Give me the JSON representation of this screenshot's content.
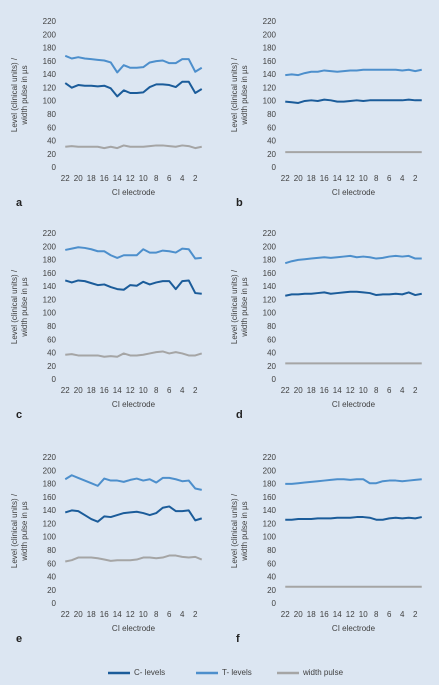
{
  "chart_data": [
    {
      "type": "line",
      "label": "a",
      "ylabel": [
        "Level (clinical units) /",
        "width pulse in µs"
      ],
      "xlabel": "CI electrode",
      "categories": [
        "22",
        null,
        "20",
        null,
        "18",
        null,
        "16",
        null,
        "14",
        null,
        "12",
        null,
        "10",
        null,
        "8",
        null,
        "6",
        null,
        "4",
        null,
        "2",
        null
      ],
      "ylim": [
        0,
        220
      ],
      "yticks": [
        0,
        20,
        40,
        60,
        80,
        100,
        120,
        140,
        160,
        180,
        200,
        220
      ],
      "series": [
        {
          "name": "C- levels",
          "color": "#1b5c9a",
          "values": [
            128,
            121,
            125,
            124,
            124,
            123,
            124,
            120,
            108,
            117,
            113,
            113,
            114,
            122,
            126,
            126,
            125,
            122,
            130,
            130,
            113,
            119
          ]
        },
        {
          "name": "T- levels",
          "color": "#4d8fcc",
          "values": [
            169,
            165,
            167,
            165,
            164,
            163,
            162,
            159,
            144,
            155,
            151,
            151,
            152,
            159,
            161,
            162,
            158,
            158,
            164,
            164,
            145,
            151
          ]
        },
        {
          "name": "width pulse",
          "color": "#a5a5a5",
          "values": [
            32,
            33,
            32,
            32,
            32,
            32,
            30,
            32,
            30,
            34,
            32,
            32,
            32,
            33,
            34,
            34,
            33,
            32,
            34,
            33,
            30,
            32
          ]
        }
      ]
    },
    {
      "type": "line",
      "label": "b",
      "ylabel": [
        "Level (clinical units) /",
        "width pulse in µs"
      ],
      "xlabel": "CI electrode",
      "categories": [
        "22",
        null,
        "20",
        null,
        "18",
        null,
        "16",
        null,
        "14",
        null,
        "12",
        null,
        "10",
        null,
        "8",
        null,
        "6",
        null,
        "4",
        null,
        "2",
        null
      ],
      "ylim": [
        0,
        220
      ],
      "yticks": [
        0,
        20,
        40,
        60,
        80,
        100,
        120,
        140,
        160,
        180,
        200,
        220
      ],
      "series": [
        {
          "name": "C- levels",
          "color": "#1b5c9a",
          "values": [
            100,
            99,
            98,
            101,
            102,
            101,
            103,
            102,
            100,
            100,
            101,
            102,
            101,
            102,
            102,
            102,
            102,
            102,
            102,
            103,
            102,
            102
          ]
        },
        {
          "name": "T- levels",
          "color": "#4d8fcc",
          "values": [
            140,
            141,
            140,
            143,
            145,
            145,
            147,
            146,
            145,
            146,
            147,
            147,
            148,
            148,
            148,
            148,
            148,
            148,
            147,
            148,
            146,
            148
          ]
        },
        {
          "name": "width pulse",
          "color": "#a5a5a5",
          "values": [
            24,
            24,
            24,
            24,
            24,
            24,
            24,
            24,
            24,
            24,
            24,
            24,
            24,
            24,
            24,
            24,
            24,
            24,
            24,
            24,
            24,
            24
          ]
        }
      ]
    },
    {
      "type": "line",
      "label": "c",
      "ylabel": [
        "Level (clinical units) /",
        "width pulse in µs"
      ],
      "xlabel": "CI electrode",
      "categories": [
        "22",
        null,
        "20",
        null,
        "18",
        null,
        "16",
        null,
        "14",
        null,
        "12",
        null,
        "10",
        null,
        "8",
        null,
        "6",
        null,
        "4",
        null,
        "2",
        null
      ],
      "ylim": [
        0,
        220
      ],
      "yticks": [
        0,
        20,
        40,
        60,
        80,
        100,
        120,
        140,
        160,
        180,
        200,
        220
      ],
      "series": [
        {
          "name": "C- levels",
          "color": "#1b5c9a",
          "values": [
            150,
            147,
            150,
            149,
            146,
            143,
            144,
            140,
            137,
            136,
            143,
            142,
            148,
            144,
            147,
            149,
            149,
            137,
            149,
            150,
            131,
            130
          ]
        },
        {
          "name": "T- levels",
          "color": "#4d8fcc",
          "values": [
            196,
            198,
            200,
            199,
            197,
            194,
            194,
            188,
            184,
            188,
            188,
            188,
            197,
            192,
            192,
            195,
            194,
            192,
            198,
            197,
            183,
            184
          ]
        },
        {
          "name": "width pulse",
          "color": "#a5a5a5",
          "values": [
            38,
            39,
            37,
            37,
            37,
            37,
            35,
            36,
            35,
            40,
            37,
            37,
            38,
            40,
            42,
            43,
            40,
            42,
            40,
            37,
            37,
            40
          ]
        }
      ]
    },
    {
      "type": "line",
      "label": "d",
      "ylabel": [
        "Level (clinical units) /",
        "width pulse in µs"
      ],
      "xlabel": "CI electrode",
      "categories": [
        "22",
        null,
        "20",
        null,
        "18",
        null,
        "16",
        null,
        "14",
        null,
        "12",
        null,
        "10",
        null,
        "8",
        null,
        "6",
        null,
        "4",
        null,
        "2",
        null
      ],
      "ylim": [
        0,
        220
      ],
      "yticks": [
        0,
        20,
        40,
        60,
        80,
        100,
        120,
        140,
        160,
        180,
        200,
        220
      ],
      "series": [
        {
          "name": "C- levels",
          "color": "#1b5c9a",
          "values": [
            127,
            129,
            129,
            130,
            130,
            131,
            132,
            130,
            131,
            132,
            133,
            133,
            132,
            131,
            128,
            129,
            129,
            130,
            129,
            132,
            128,
            130
          ]
        },
        {
          "name": "T- levels",
          "color": "#4d8fcc",
          "values": [
            176,
            179,
            181,
            182,
            183,
            184,
            185,
            184,
            185,
            186,
            187,
            185,
            186,
            185,
            183,
            184,
            186,
            187,
            186,
            187,
            183,
            183
          ]
        },
        {
          "name": "width pulse",
          "color": "#a5a5a5",
          "values": [
            25,
            25,
            25,
            25,
            25,
            25,
            25,
            25,
            25,
            25,
            25,
            25,
            25,
            25,
            25,
            25,
            25,
            25,
            25,
            25,
            25,
            25
          ]
        }
      ]
    },
    {
      "type": "line",
      "label": "e",
      "ylabel": [
        "Level (clinical units) /",
        "width pulse in µs"
      ],
      "xlabel": "CI electrode",
      "categories": [
        "22",
        null,
        "20",
        null,
        "18",
        null,
        "16",
        null,
        "14",
        null,
        "12",
        null,
        "10",
        null,
        "8",
        null,
        "6",
        null,
        "4",
        null,
        "2",
        null
      ],
      "ylim": [
        0,
        220
      ],
      "yticks": [
        0,
        20,
        40,
        60,
        80,
        100,
        120,
        140,
        160,
        180,
        200,
        220
      ],
      "series": [
        {
          "name": "C- levels",
          "color": "#1b5c9a",
          "values": [
            138,
            141,
            140,
            134,
            128,
            124,
            132,
            131,
            134,
            137,
            138,
            139,
            137,
            134,
            137,
            145,
            147,
            140,
            140,
            141,
            126,
            129
          ]
        },
        {
          "name": "T- levels",
          "color": "#4d8fcc",
          "values": [
            188,
            194,
            190,
            186,
            182,
            178,
            189,
            186,
            186,
            184,
            187,
            189,
            186,
            188,
            183,
            190,
            190,
            188,
            185,
            186,
            174,
            172
          ]
        },
        {
          "name": "width pulse",
          "color": "#a5a5a5",
          "values": [
            64,
            66,
            70,
            70,
            70,
            69,
            67,
            65,
            66,
            66,
            66,
            67,
            70,
            70,
            69,
            70,
            73,
            73,
            71,
            70,
            71,
            67
          ]
        }
      ]
    },
    {
      "type": "line",
      "label": "f",
      "ylabel": [
        "Level (clinical units) /",
        "width pulse in µs"
      ],
      "xlabel": "CI electrode",
      "categories": [
        "22",
        null,
        "20",
        null,
        "18",
        null,
        "16",
        null,
        "14",
        null,
        "12",
        null,
        "10",
        null,
        "8",
        null,
        "6",
        null,
        "4",
        null,
        "2",
        null
      ],
      "ylim": [
        0,
        220
      ],
      "yticks": [
        0,
        20,
        40,
        60,
        80,
        100,
        120,
        140,
        160,
        180,
        200,
        220
      ],
      "series": [
        {
          "name": "C- levels",
          "color": "#1b5c9a",
          "values": [
            127,
            127,
            128,
            128,
            128,
            129,
            129,
            129,
            130,
            130,
            130,
            131,
            131,
            130,
            127,
            127,
            129,
            130,
            129,
            130,
            129,
            131
          ]
        },
        {
          "name": "T- levels",
          "color": "#4d8fcc",
          "values": [
            181,
            181,
            182,
            183,
            184,
            185,
            186,
            187,
            188,
            188,
            187,
            188,
            188,
            182,
            182,
            185,
            186,
            186,
            185,
            186,
            187,
            188
          ]
        },
        {
          "name": "width pulse",
          "color": "#a5a5a5",
          "values": [
            26,
            26,
            26,
            26,
            26,
            26,
            26,
            26,
            26,
            26,
            26,
            26,
            26,
            26,
            26,
            26,
            26,
            26,
            26,
            26,
            26,
            26
          ]
        }
      ]
    }
  ]
}
